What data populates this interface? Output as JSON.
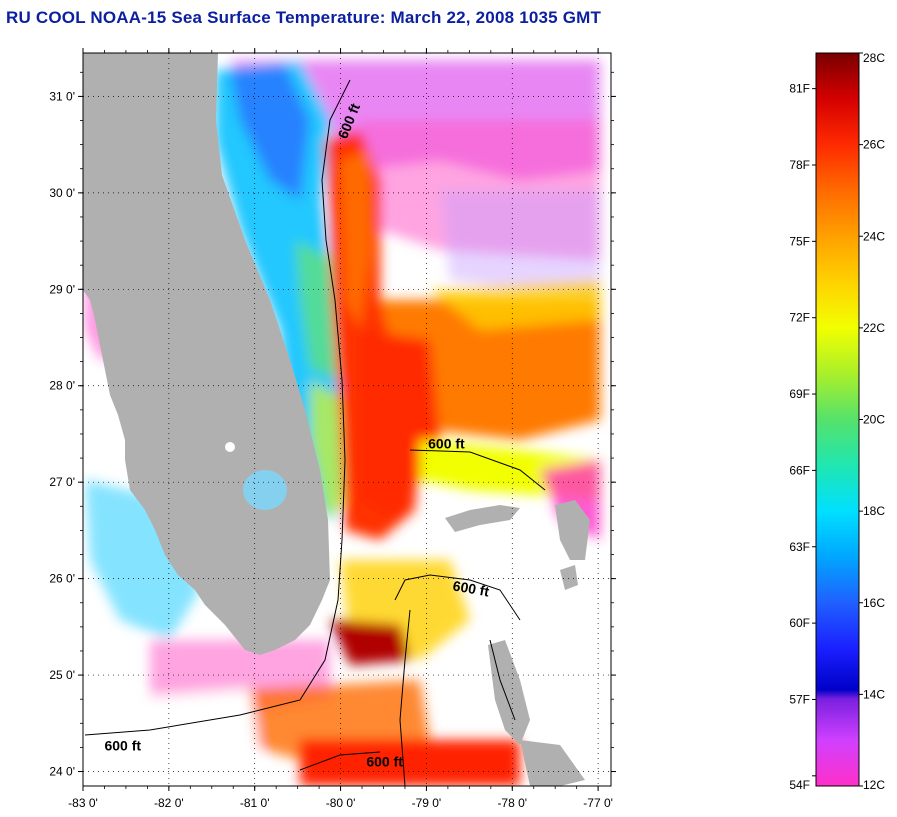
{
  "title": "RU COOL  NOAA-15  Sea Surface Temperature:  March 22, 2008 1035 GMT",
  "map": {
    "lon_range": [
      -83,
      -76.85
    ],
    "lat_range": [
      23.85,
      31.45
    ],
    "lat_ticks": [
      {
        "value": 31,
        "label": "31 0'"
      },
      {
        "value": 30,
        "label": "30 0'"
      },
      {
        "value": 29,
        "label": "29 0'"
      },
      {
        "value": 28,
        "label": "28 0'"
      },
      {
        "value": 27,
        "label": "27 0'"
      },
      {
        "value": 26,
        "label": "26 0'"
      },
      {
        "value": 25,
        "label": "25 0'"
      },
      {
        "value": 24,
        "label": "24 0'"
      }
    ],
    "lon_ticks": [
      {
        "value": -83,
        "label": "-83 0'"
      },
      {
        "value": -82,
        "label": "-82 0'"
      },
      {
        "value": -81,
        "label": "-81 0'"
      },
      {
        "value": -80,
        "label": "-80 0'"
      },
      {
        "value": -79,
        "label": "-79 0'"
      },
      {
        "value": -78,
        "label": "-78 0'"
      },
      {
        "value": -77,
        "label": "-77 0'"
      }
    ],
    "contour_labels": [
      {
        "text": "600 ft",
        "lon": -79.93,
        "lat": 30.55
      },
      {
        "text": "600 ft",
        "lon": -78.98,
        "lat": 27.35
      },
      {
        "text": "600 ft",
        "lon": -78.7,
        "lat": 25.88
      },
      {
        "text": "600 ft",
        "lon": -82.75,
        "lat": 24.22
      },
      {
        "text": "600 ft",
        "lon": -79.7,
        "lat": 24.05
      }
    ],
    "land_color": "#b0b0b0"
  },
  "colorbar": {
    "range_c": [
      12,
      28
    ],
    "celsius_labels": [
      {
        "value": 28,
        "label": "28C"
      },
      {
        "value": 26,
        "label": "26C"
      },
      {
        "value": 24,
        "label": "24C"
      },
      {
        "value": 22,
        "label": "22C"
      },
      {
        "value": 20,
        "label": "20C"
      },
      {
        "value": 18,
        "label": "18C"
      },
      {
        "value": 16,
        "label": "16C"
      },
      {
        "value": 14,
        "label": "14C"
      },
      {
        "value": 12,
        "label": "12C"
      }
    ],
    "fahrenheit_labels": [
      {
        "value": 81,
        "label": "81F"
      },
      {
        "value": 78,
        "label": "78F"
      },
      {
        "value": 75,
        "label": "75F"
      },
      {
        "value": 72,
        "label": "72F"
      },
      {
        "value": 69,
        "label": "69F"
      },
      {
        "value": 66,
        "label": "66F"
      },
      {
        "value": 63,
        "label": "63F"
      },
      {
        "value": 60,
        "label": "60F"
      },
      {
        "value": 57,
        "label": "57F"
      },
      {
        "value": 54,
        "label": "54F"
      }
    ],
    "gradient_stops": [
      {
        "c": 28,
        "color": "#7a0000"
      },
      {
        "c": 27,
        "color": "#d40000"
      },
      {
        "c": 26,
        "color": "#ff2a00"
      },
      {
        "c": 25,
        "color": "#ff6a00"
      },
      {
        "c": 24,
        "color": "#ffa000"
      },
      {
        "c": 23,
        "color": "#ffd200"
      },
      {
        "c": 22,
        "color": "#f2ff00"
      },
      {
        "c": 21,
        "color": "#aaf02a"
      },
      {
        "c": 20,
        "color": "#55e26a"
      },
      {
        "c": 19,
        "color": "#20e6b0"
      },
      {
        "c": 18,
        "color": "#00e0ff"
      },
      {
        "c": 17,
        "color": "#00a6ff"
      },
      {
        "c": 16,
        "color": "#2060ff"
      },
      {
        "c": 15,
        "color": "#1a20ff"
      },
      {
        "c": 14.1,
        "color": "#0000c8"
      },
      {
        "c": 13.9,
        "color": "#7a20e0"
      },
      {
        "c": 13,
        "color": "#d040ff"
      },
      {
        "c": 12,
        "color": "#ff30c8"
      }
    ]
  }
}
